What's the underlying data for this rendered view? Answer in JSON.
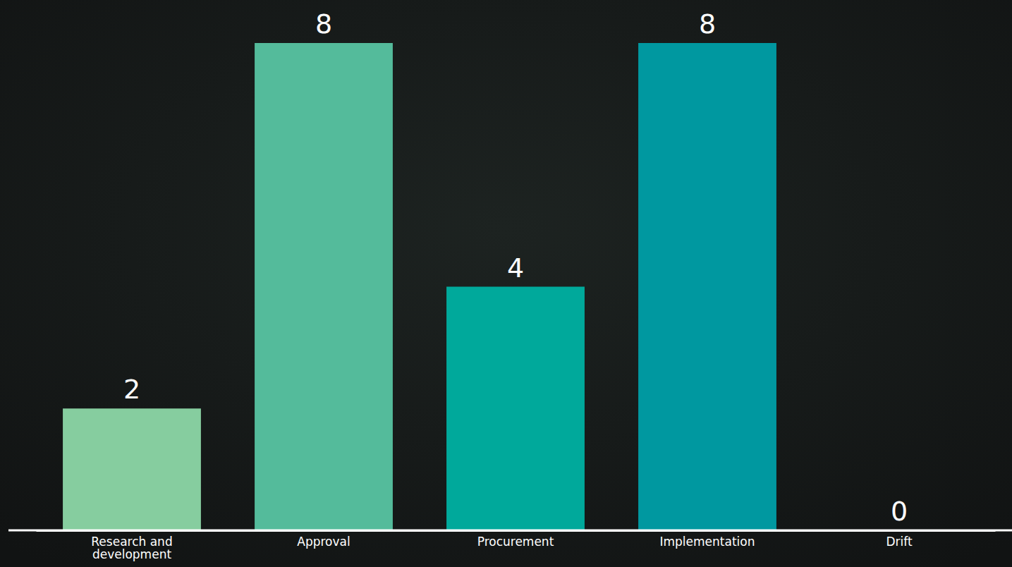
{
  "chart_data": {
    "type": "bar",
    "categories": [
      "Research and development",
      "Approval",
      "Procurement",
      "Implementation",
      "Drift"
    ],
    "values": [
      2,
      8,
      4,
      8,
      0
    ],
    "colors": [
      "#86cd9f",
      "#54bb9b",
      "#00a99b",
      "#0098a0",
      "#008f9e"
    ],
    "ylim": [
      0,
      8
    ],
    "data_labels": true,
    "tick_labels": "x"
  }
}
